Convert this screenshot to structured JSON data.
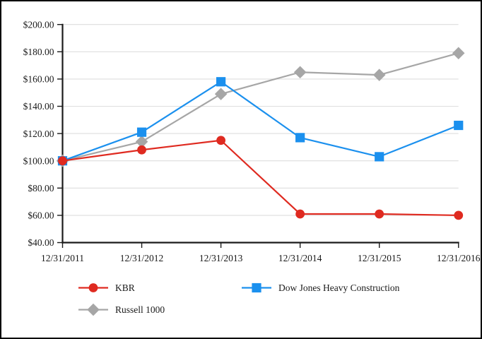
{
  "chart_data": {
    "type": "line",
    "title": "",
    "xlabel": "",
    "ylabel": "",
    "x": [
      "12/31/2011",
      "12/31/2012",
      "12/31/2013",
      "12/31/2014",
      "12/31/2015",
      "12/31/2016"
    ],
    "series": [
      {
        "name": "KBR",
        "marker": "circle",
        "color": "#DF2A20",
        "values": [
          100,
          108,
          115,
          61,
          61,
          60
        ]
      },
      {
        "name": "Dow Jones Heavy Construction",
        "marker": "square",
        "color": "#1B90EE",
        "values": [
          100,
          121,
          158,
          117,
          103,
          126
        ]
      },
      {
        "name": "Russell 1000",
        "marker": "diamond",
        "color": "#A6A6A6",
        "values": [
          100,
          114,
          149,
          165,
          163,
          179
        ]
      }
    ],
    "ylim": [
      40,
      200
    ],
    "y_ticks": [
      40,
      60,
      80,
      100,
      120,
      140,
      160,
      180,
      200
    ],
    "y_tick_labels": [
      "$40.00",
      "$60.00",
      "$80.00",
      "$100.00",
      "$120.00",
      "$140.00",
      "$160.00",
      "$180.00",
      "$200.00"
    ],
    "grid": "horizontal",
    "legend_position": "bottom-left-two-column"
  },
  "styles": {
    "axis_color": "#1a1a1a",
    "grid_color": "#dedede",
    "text_color": "#1a1a1a",
    "background": "#ffffff",
    "frame_border": "#000000"
  }
}
